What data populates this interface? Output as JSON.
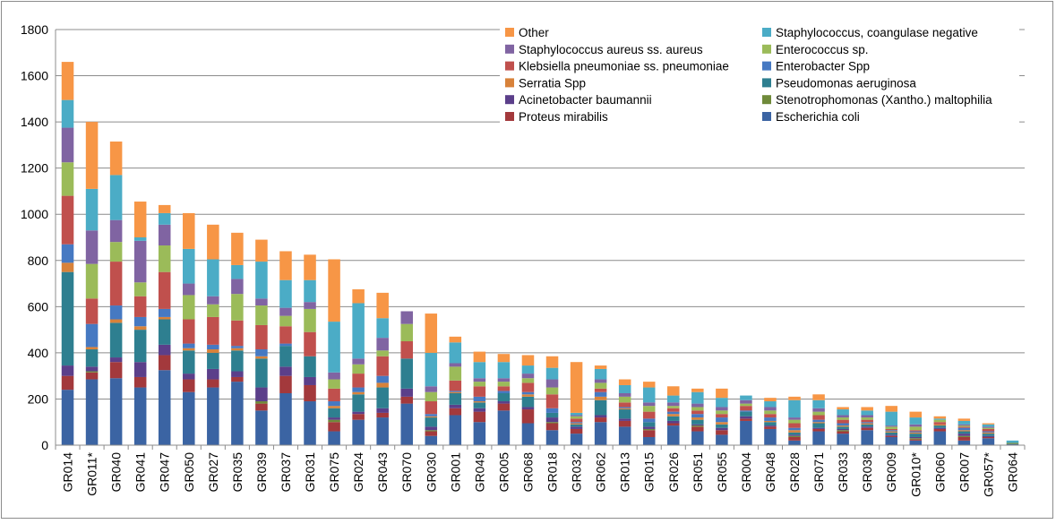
{
  "chart_data": {
    "type": "bar",
    "stacked": true,
    "title": "",
    "xlabel": "",
    "ylabel": "",
    "ylim": [
      0,
      1800
    ],
    "y_ticks": [
      0,
      200,
      400,
      600,
      800,
      1000,
      1200,
      1400,
      1600,
      1800
    ],
    "grid": true,
    "legend_position": "top-right",
    "categories": [
      "GR014",
      "GR011*",
      "GR040",
      "GR041",
      "GR047",
      "GR050",
      "GR027",
      "GR035",
      "GR039",
      "GR037",
      "GR031",
      "GR075",
      "GR024",
      "GR043",
      "GR070",
      "GR030",
      "GR001",
      "GR049",
      "GR005",
      "GR068",
      "GR018",
      "GR032",
      "GR062",
      "GR013",
      "GR015",
      "GR026",
      "GR051",
      "GR055",
      "GR004",
      "GR048",
      "GR028",
      "GR071",
      "GR033",
      "GR038",
      "GR009",
      "GR010*",
      "GR060",
      "GR007",
      "GR057*",
      "GR064"
    ],
    "series": [
      {
        "name": "Escherichia coli",
        "color": "#3b64a3",
        "values": [
          240,
          285,
          290,
          250,
          325,
          230,
          250,
          275,
          150,
          225,
          190,
          60,
          110,
          120,
          180,
          40,
          130,
          100,
          150,
          95,
          65,
          50,
          100,
          80,
          35,
          85,
          60,
          45,
          105,
          70,
          20,
          60,
          50,
          65,
          35,
          20,
          60,
          20,
          30,
          5
        ]
      },
      {
        "name": "Proteus mirabilis",
        "color": "#a3393c",
        "values": [
          60,
          30,
          70,
          45,
          65,
          55,
          35,
          20,
          30,
          75,
          70,
          40,
          25,
          20,
          30,
          20,
          30,
          45,
          30,
          60,
          30,
          20,
          20,
          25,
          30,
          10,
          20,
          20,
          10,
          10,
          15,
          10,
          10,
          10,
          5,
          5,
          10,
          15,
          5,
          0
        ]
      },
      {
        "name": "Stenotrophomonas (Xantho.) maltophilia",
        "color": "#6f8a3a",
        "values": [
          0,
          5,
          0,
          0,
          0,
          0,
          0,
          0,
          10,
          0,
          0,
          10,
          0,
          0,
          0,
          5,
          0,
          0,
          0,
          0,
          5,
          0,
          0,
          0,
          5,
          0,
          5,
          0,
          0,
          0,
          5,
          0,
          5,
          0,
          0,
          5,
          0,
          5,
          0,
          5
        ]
      },
      {
        "name": "Acinetobacter baumannii",
        "color": "#5b3f8a",
        "values": [
          45,
          20,
          20,
          65,
          45,
          25,
          45,
          25,
          60,
          40,
          35,
          10,
          10,
          20,
          35,
          15,
          15,
          15,
          10,
          10,
          20,
          10,
          10,
          10,
          10,
          10,
          5,
          10,
          10,
          5,
          5,
          5,
          5,
          5,
          5,
          5,
          5,
          10,
          5,
          0
        ]
      },
      {
        "name": "Pseudomonas aeruginosa",
        "color": "#2e7f90",
        "values": [
          405,
          75,
          150,
          140,
          110,
          100,
          70,
          90,
          125,
          90,
          90,
          40,
          75,
          90,
          130,
          40,
          50,
          25,
          35,
          45,
          20,
          10,
          65,
          40,
          20,
          20,
          20,
          15,
          20,
          15,
          10,
          20,
          10,
          10,
          10,
          15,
          10,
          10,
          10,
          0
        ]
      },
      {
        "name": "Serratia Spp",
        "color": "#d8823a",
        "values": [
          40,
          10,
          15,
          15,
          10,
          10,
          15,
          10,
          10,
          0,
          0,
          10,
          10,
          20,
          0,
          5,
          5,
          5,
          0,
          10,
          0,
          5,
          15,
          5,
          0,
          10,
          10,
          10,
          0,
          5,
          10,
          5,
          5,
          5,
          5,
          5,
          5,
          5,
          5,
          0
        ]
      },
      {
        "name": "Enterobacter Spp",
        "color": "#4679c2",
        "values": [
          80,
          100,
          60,
          40,
          35,
          20,
          20,
          10,
          30,
          10,
          0,
          20,
          20,
          30,
          0,
          10,
          5,
          20,
          10,
          10,
          20,
          5,
          20,
          5,
          15,
          10,
          15,
          20,
          5,
          15,
          10,
          10,
          10,
          5,
          5,
          5,
          0,
          10,
          5,
          0
        ]
      },
      {
        "name": "Klebsiella pneumoniae ss. pneumoniae",
        "color": "#c0504d",
        "values": [
          210,
          110,
          190,
          90,
          160,
          105,
          120,
          110,
          105,
          75,
          105,
          55,
          60,
          85,
          75,
          55,
          45,
          45,
          20,
          40,
          60,
          15,
          15,
          20,
          30,
          15,
          15,
          15,
          20,
          15,
          20,
          20,
          15,
          10,
          5,
          5,
          10,
          5,
          10,
          0
        ]
      },
      {
        "name": "Enterococcus sp.",
        "color": "#9bbb59",
        "values": [
          145,
          150,
          85,
          60,
          115,
          105,
          55,
          115,
          85,
          45,
          100,
          40,
          40,
          25,
          75,
          40,
          60,
          20,
          20,
          20,
          30,
          10,
          25,
          25,
          25,
          10,
          15,
          15,
          10,
          15,
          15,
          15,
          10,
          10,
          10,
          15,
          10,
          5,
          5,
          0
        ]
      },
      {
        "name": "Staphylococcus aureus ss. aureus",
        "color": "#8064a2",
        "values": [
          150,
          145,
          95,
          180,
          90,
          50,
          35,
          65,
          30,
          35,
          30,
          30,
          25,
          55,
          55,
          25,
          15,
          15,
          15,
          20,
          35,
          5,
          15,
          15,
          15,
          15,
          15,
          15,
          15,
          15,
          10,
          15,
          10,
          10,
          5,
          10,
          0,
          5,
          5,
          0
        ]
      },
      {
        "name": "Staphylococcus, coangulase negative",
        "color": "#4bacc6",
        "values": [
          120,
          180,
          195,
          15,
          50,
          150,
          160,
          60,
          160,
          120,
          95,
          220,
          240,
          85,
          0,
          145,
          90,
          70,
          70,
          35,
          50,
          10,
          45,
          35,
          65,
          30,
          50,
          40,
          20,
          25,
          75,
          35,
          25,
          20,
          60,
          30,
          5,
          15,
          10,
          10
        ]
      },
      {
        "name": "Other",
        "color": "#f79646",
        "values": [
          165,
          290,
          145,
          155,
          35,
          155,
          150,
          140,
          95,
          125,
          110,
          270,
          60,
          110,
          0,
          170,
          25,
          45,
          35,
          45,
          50,
          220,
          15,
          25,
          25,
          40,
          15,
          40,
          0,
          15,
          15,
          25,
          10,
          15,
          25,
          25,
          10,
          10,
          5,
          0
        ]
      }
    ],
    "legend_order": [
      "Other",
      "Staphylococcus, coangulase negative",
      "Staphylococcus aureus ss. aureus",
      "Enterococcus sp.",
      "Klebsiella pneumoniae ss. pneumoniae",
      "Enterobacter Spp",
      "Serratia Spp",
      "Pseudomonas aeruginosa",
      "Acinetobacter baumannii",
      "Stenotrophomonas (Xantho.) maltophilia",
      "Proteus mirabilis",
      "Escherichia coli"
    ]
  }
}
